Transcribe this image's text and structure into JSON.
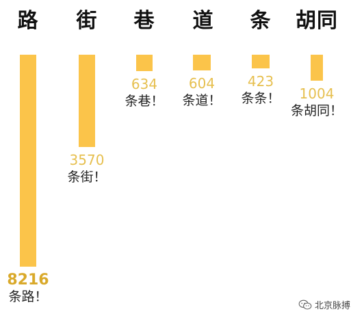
{
  "chart_data": {
    "type": "bar",
    "categories": [
      "路",
      "街",
      "巷",
      "道",
      "条",
      "胡同"
    ],
    "values": [
      8216,
      3570,
      634,
      604,
      423,
      1004
    ],
    "value_labels": [
      "8216",
      "3570",
      "634",
      "604",
      "423",
      "1004"
    ],
    "notes": [
      "条路！",
      "条街！",
      "条巷！",
      "条道！",
      "条条！",
      "条胡同！"
    ],
    "title": "",
    "xlabel": "",
    "ylabel": "",
    "grid": false,
    "colors": {
      "bar": "#FBC44A",
      "value_text": "#E6BF4E",
      "top_value_text": "#D9A92A"
    }
  },
  "watermark": {
    "text": "北京脉搏",
    "icon": "wechat-icon"
  }
}
